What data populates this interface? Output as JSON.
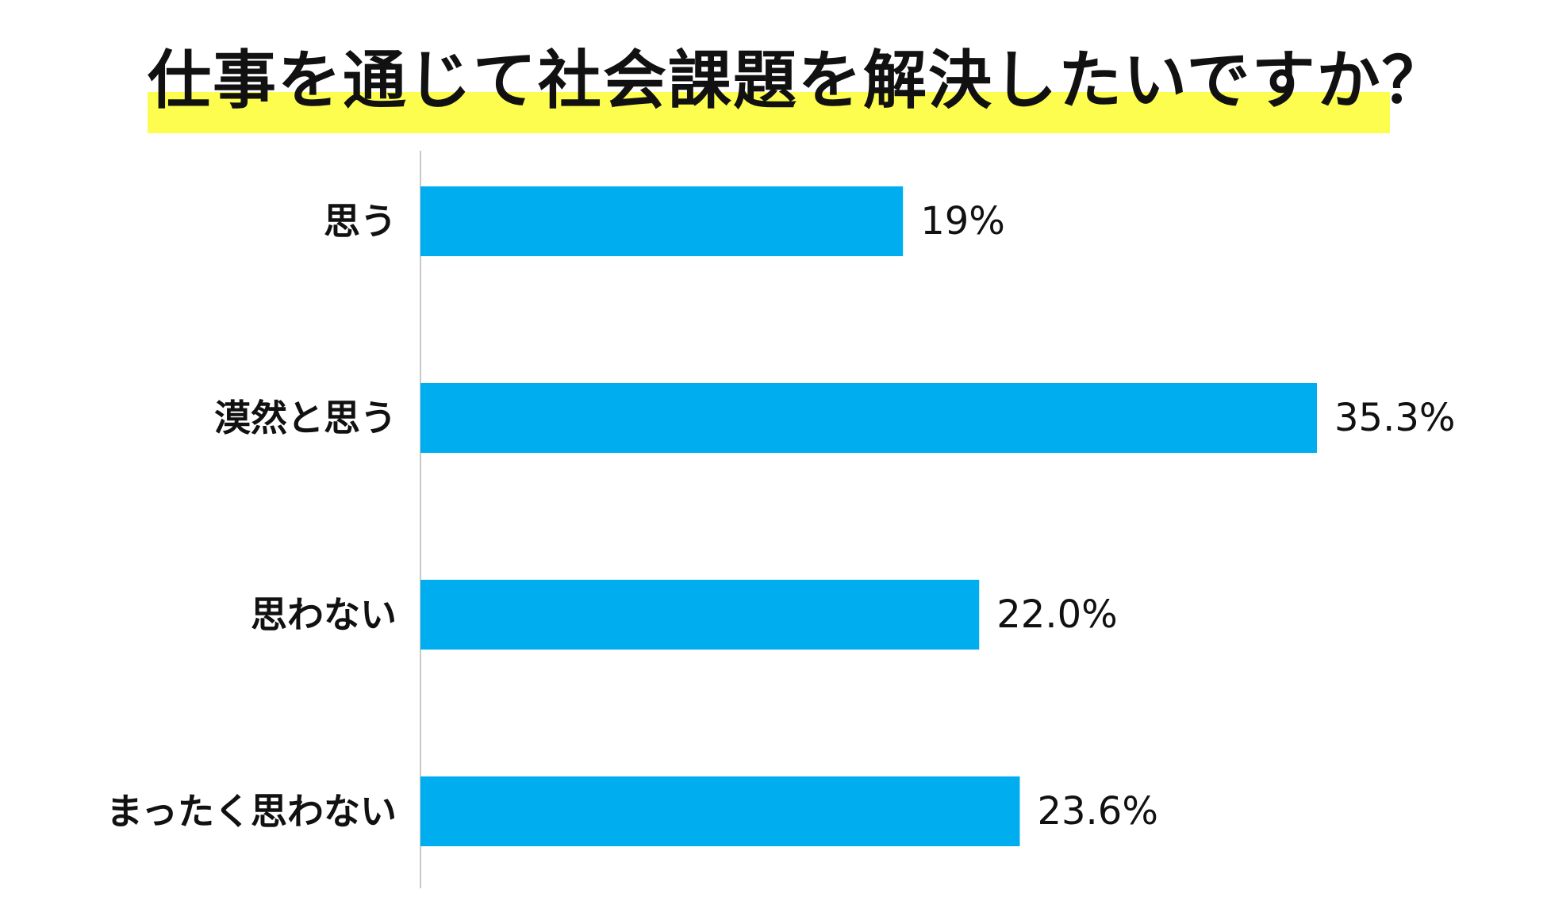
{
  "colors": {
    "bar": "#00aeef",
    "axis": "#c8c8c8",
    "highlight": "#fdfd4f",
    "text": "#111111"
  },
  "chart_data": {
    "type": "bar",
    "orientation": "horizontal",
    "title": "仕事を通じて社会課題を解決したいですか？",
    "categories": [
      "思う",
      "漠然と思う",
      "思わない",
      "まったく思わない"
    ],
    "values": [
      19,
      35.3,
      22.0,
      23.6
    ],
    "value_labels": [
      "19%",
      "35.3%",
      "22.0%",
      "23.6%"
    ],
    "xlim": [
      0,
      35.3
    ],
    "grid": false,
    "legend": "none"
  }
}
